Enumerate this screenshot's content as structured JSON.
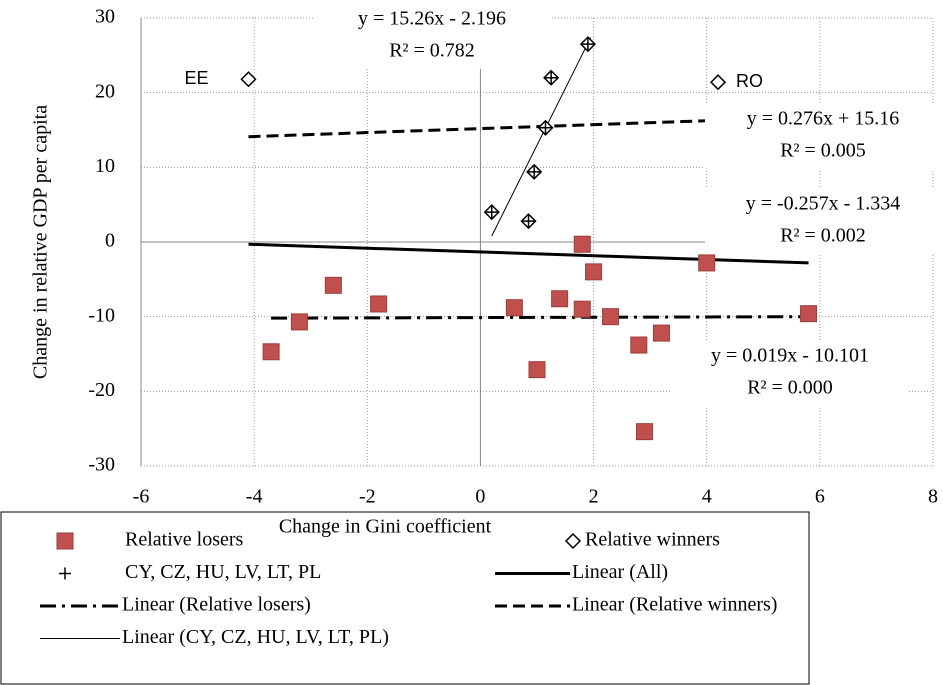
{
  "chart_data": {
    "type": "scatter",
    "xlabel": "Change in Gini coefficient",
    "ylabel": "Change in relative GDP per capita",
    "xlim": [
      -6,
      8
    ],
    "xticks": [
      -6,
      -4,
      -2,
      0,
      2,
      4,
      6,
      8
    ],
    "ylim": [
      -30,
      30
    ],
    "yticks": [
      -30,
      -20,
      -10,
      0,
      10,
      20,
      30
    ],
    "grid": true,
    "series": [
      {
        "name": "Relative losers",
        "marker": "square",
        "color": "#c0504d",
        "x": [
          -3.7,
          -3.2,
          -2.6,
          -1.8,
          0.6,
          1.0,
          1.4,
          1.8,
          1.8,
          2.0,
          2.3,
          2.8,
          2.9,
          3.2,
          4.0,
          5.8
        ],
        "values": [
          -14.7,
          -10.7,
          -5.8,
          -8.3,
          -8.8,
          -17.1,
          -7.6,
          -0.3,
          -9.0,
          -4.0,
          -10.0,
          -13.8,
          -25.4,
          -12.2,
          -2.8,
          -9.6
        ]
      },
      {
        "name": "Relative winners",
        "marker": "diamond",
        "color": "#000000",
        "x": [
          -4.1,
          0.2,
          0.85,
          0.95,
          1.15,
          1.25,
          1.9,
          4.2
        ],
        "values": [
          21.8,
          4.0,
          2.8,
          9.4,
          15.3,
          22.0,
          26.5,
          21.4
        ],
        "point_labels": [
          "EE",
          null,
          null,
          null,
          null,
          null,
          null,
          "RO"
        ]
      },
      {
        "name": "CY, CZ, HU, LV, LT, PL",
        "marker": "plus",
        "color": "#000000",
        "x": [
          0.2,
          0.85,
          0.95,
          1.15,
          1.25,
          1.9
        ],
        "values": [
          4.0,
          2.8,
          9.4,
          15.3,
          22.0,
          26.5
        ]
      }
    ],
    "trendlines": [
      {
        "name": "Linear (All)",
        "style": "solid",
        "color": "#000000",
        "x": [
          -4.1,
          5.8
        ],
        "values": [
          -0.3,
          -2.8
        ],
        "equation": "y = -0.257x - 1.334",
        "r2": "R² = 0.002"
      },
      {
        "name": "Linear (Relative losers)",
        "style": "dashdot",
        "color": "#000000",
        "x": [
          -3.7,
          5.8
        ],
        "values": [
          -10.2,
          -10.0
        ],
        "equation": "y = 0.019x - 10.101",
        "r2": "R² = 0.000"
      },
      {
        "name": "Linear (Relative winners)",
        "style": "dashed",
        "color": "#000000",
        "x": [
          -4.1,
          4.2
        ],
        "values": [
          14.1,
          16.3
        ],
        "equation": "y = 0.276x + 15.16",
        "r2": "R² = 0.005"
      },
      {
        "name": "Linear (CY, CZ, HU, LV, LT, PL)",
        "style": "thin",
        "color": "#000000",
        "x": [
          0.2,
          1.95
        ],
        "values": [
          0.8,
          27.4
        ],
        "equation": "y = 15.26x - 2.196",
        "r2": "R² = 0.782"
      }
    ]
  }
}
